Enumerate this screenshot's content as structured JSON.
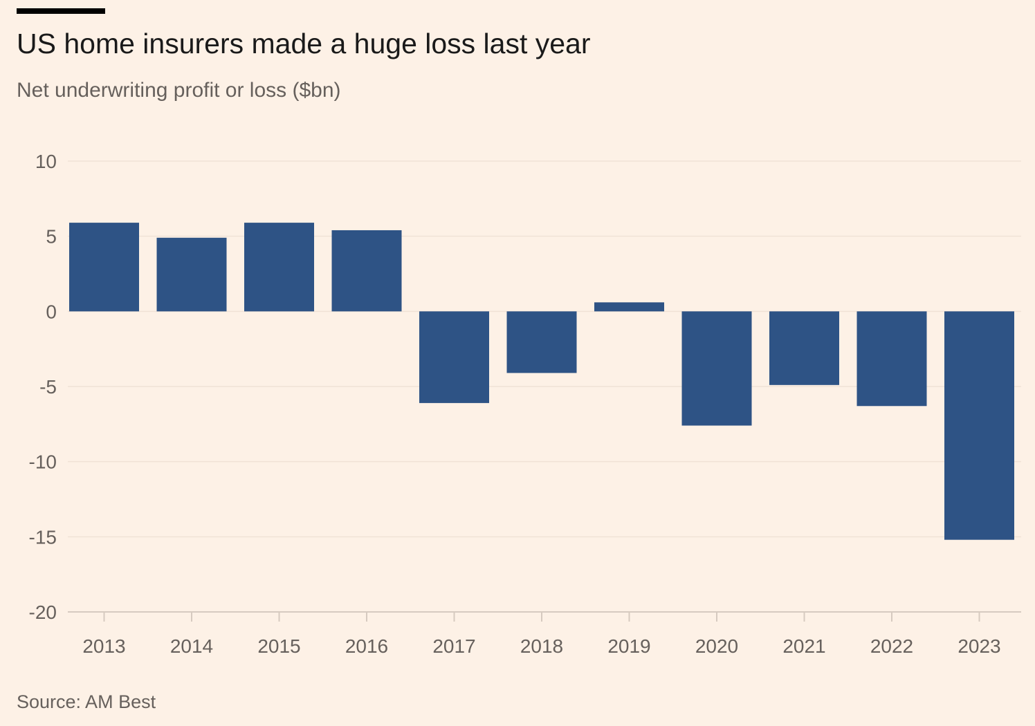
{
  "header": {
    "title": "US home insurers made a huge loss last year",
    "subtitle": "Net underwriting profit or loss ($bn)"
  },
  "footer": {
    "source": "Source: AM Best"
  },
  "colors": {
    "background": "#fdf1e6",
    "bar": "#2e5385",
    "gridline": "#f0e2d6",
    "axis": "#d6cac0",
    "text": "#66605c"
  },
  "chart_data": {
    "type": "bar",
    "title": "US home insurers made a huge loss last year",
    "subtitle": "Net underwriting profit or loss ($bn)",
    "categories": [
      "2013",
      "2014",
      "2015",
      "2016",
      "2017",
      "2018",
      "2019",
      "2020",
      "2021",
      "2022",
      "2023"
    ],
    "values": [
      5.9,
      4.9,
      5.9,
      5.4,
      -6.1,
      -4.1,
      0.6,
      -7.6,
      -4.9,
      -6.3,
      -15.2
    ],
    "ylim": [
      -20,
      10
    ],
    "yticks": [
      10,
      5,
      0,
      -5,
      -10,
      -15,
      -20
    ],
    "ytick_labels": [
      "10",
      "5",
      "0",
      "-5",
      "-10",
      "-15",
      "-20"
    ],
    "grid": true,
    "xlabel": "",
    "ylabel": ""
  }
}
